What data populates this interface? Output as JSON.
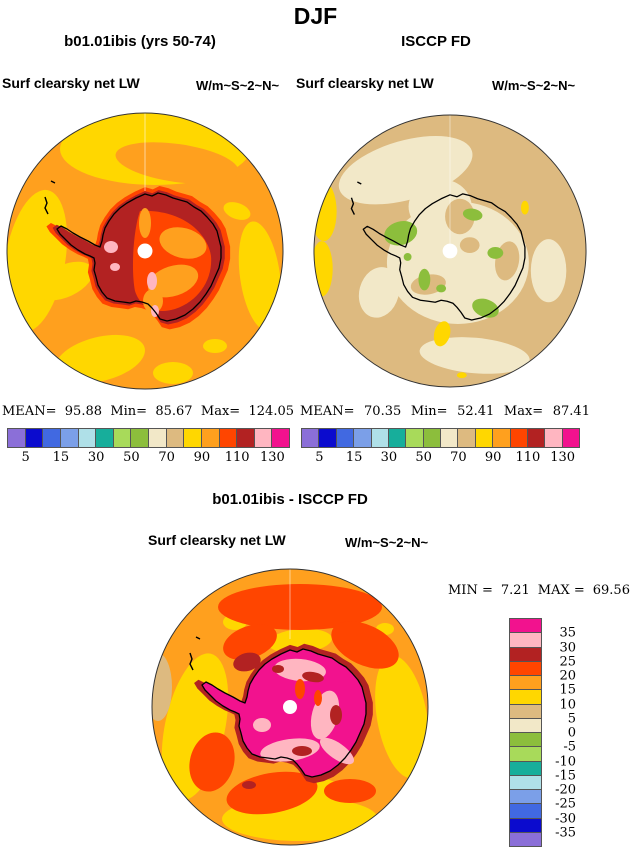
{
  "title": "DJF",
  "palette": {
    "purple": "#8b6fd8",
    "blue_dark": "#0b0bce",
    "blue_royal": "#4169e1",
    "blue_light": "#7b9fe8",
    "cyan_pale": "#afe0e8",
    "teal": "#17ae9b",
    "green_light": "#a8da5a",
    "green": "#8cbe3c",
    "cream": "#f2e8c8",
    "tan": "#ddba80",
    "gold": "#ffd700",
    "orange": "#ffa01e",
    "orange_red": "#ff4500",
    "dark_red": "#b22222",
    "pink": "#ffb6c1",
    "magenta": "#f2128e",
    "coast": "#000000",
    "circle_edge": "#333333",
    "pole": "#ffffff",
    "meridian": "#ffffff"
  },
  "panels": {
    "model": {
      "subtitle": "b01.01ibis (yrs 50-74)",
      "field": "Surf clearsky net LW",
      "units": "W/m~S~2~N~",
      "stats": [
        {
          "label": "MEAN=",
          "value": "95.88"
        },
        {
          "label": "Min=",
          "value": "85.67"
        },
        {
          "label": "Max=",
          "value": "124.05"
        }
      ]
    },
    "obs": {
      "subtitle": "ISCCP FD",
      "field": "Surf clearsky net LW",
      "units": "W/m~S~2~N~",
      "stats": [
        {
          "label": "MEAN=",
          "value": "70.35"
        },
        {
          "label": "Min=",
          "value": "52.41"
        },
        {
          "label": "Max=",
          "value": "87.41"
        }
      ]
    },
    "diff": {
      "subtitle": "b01.01ibis - ISCCP FD",
      "field": "Surf clearsky net LW",
      "units": "W/m~S~2~N~",
      "stats": [
        {
          "label": "MIN =",
          "value": "7.21"
        },
        {
          "label": "MAX =",
          "value": "69.56"
        }
      ]
    }
  },
  "colorbars": {
    "absolute": {
      "orientation": "horizontal",
      "colors": [
        "#8b6fd8",
        "#0b0bce",
        "#4169e1",
        "#7b9fe8",
        "#afe0e8",
        "#17ae9b",
        "#a8da5a",
        "#8cbe3c",
        "#f2e8c8",
        "#ddba80",
        "#ffd700",
        "#ffa01e",
        "#ff4500",
        "#b22222",
        "#ffb6c1",
        "#f2128e"
      ],
      "tick_labels": [
        "5",
        "15",
        "30",
        "50",
        "70",
        "90",
        "110",
        "130"
      ]
    },
    "difference": {
      "orientation": "vertical",
      "colors_top_to_bottom": [
        "#f2128e",
        "#ffb6c1",
        "#b22222",
        "#ff4500",
        "#ffa01e",
        "#ffd700",
        "#ddba80",
        "#f2e8c8",
        "#8cbe3c",
        "#a8da5a",
        "#17ae9b",
        "#afe0e8",
        "#7b9fe8",
        "#4169e1",
        "#0b0bce",
        "#8b6fd8"
      ],
      "tick_labels_top_to_bottom": [
        "35",
        "30",
        "25",
        "20",
        "15",
        "10",
        "5",
        "0",
        "-5",
        "-10",
        "-15",
        "-20",
        "-25",
        "-30",
        "-35"
      ]
    }
  },
  "chart_data": [
    {
      "type": "heatmap",
      "map_type": "south_polar_stereographic_filled_contour",
      "title": "b01.01ibis (yrs 50-74)",
      "season": "DJF",
      "variable": "Surf clearsky net LW",
      "units_label": "W/m~S~2~N~",
      "stats": {
        "mean": 95.88,
        "min": 85.67,
        "max": 124.05
      },
      "contour_levels": [
        5,
        10,
        15,
        20,
        30,
        40,
        50,
        60,
        70,
        80,
        90,
        100,
        110,
        120,
        130
      ],
      "labeled_ticks": [
        5,
        15,
        30,
        50,
        70,
        90,
        110,
        130
      ],
      "colors_low_to_high": [
        "#8b6fd8",
        "#0b0bce",
        "#4169e1",
        "#7b9fe8",
        "#afe0e8",
        "#17ae9b",
        "#a8da5a",
        "#8cbe3c",
        "#f2e8c8",
        "#ddba80",
        "#ffd700",
        "#ffa01e",
        "#ff4500",
        "#b22222",
        "#ffb6c1",
        "#f2128e"
      ],
      "legend_position": "below"
    },
    {
      "type": "heatmap",
      "map_type": "south_polar_stereographic_filled_contour",
      "title": "ISCCP FD",
      "season": "DJF",
      "variable": "Surf clearsky net LW",
      "units_label": "W/m~S~2~N~",
      "stats": {
        "mean": 70.35,
        "min": 52.41,
        "max": 87.41
      },
      "contour_levels": [
        5,
        10,
        15,
        20,
        30,
        40,
        50,
        60,
        70,
        80,
        90,
        100,
        110,
        120,
        130
      ],
      "labeled_ticks": [
        5,
        15,
        30,
        50,
        70,
        90,
        110,
        130
      ],
      "colors_low_to_high": [
        "#8b6fd8",
        "#0b0bce",
        "#4169e1",
        "#7b9fe8",
        "#afe0e8",
        "#17ae9b",
        "#a8da5a",
        "#8cbe3c",
        "#f2e8c8",
        "#ddba80",
        "#ffd700",
        "#ffa01e",
        "#ff4500",
        "#b22222",
        "#ffb6c1",
        "#f2128e"
      ],
      "legend_position": "below"
    },
    {
      "type": "heatmap",
      "map_type": "south_polar_stereographic_filled_contour",
      "title": "b01.01ibis - ISCCP FD",
      "season": "DJF",
      "variable": "Surf clearsky net LW",
      "units_label": "W/m~S~2~N~",
      "stats": {
        "min": 7.21,
        "max": 69.56
      },
      "contour_levels": [
        -35,
        -30,
        -25,
        -20,
        -15,
        -10,
        -5,
        0,
        5,
        10,
        15,
        20,
        25,
        30,
        35
      ],
      "labeled_ticks": [
        35,
        30,
        25,
        20,
        15,
        10,
        5,
        0,
        -5,
        -10,
        -15,
        -20,
        -25,
        -30,
        -35
      ],
      "colors_low_to_high": [
        "#8b6fd8",
        "#0b0bce",
        "#4169e1",
        "#7b9fe8",
        "#afe0e8",
        "#17ae9b",
        "#a8da5a",
        "#8cbe3c",
        "#f2e8c8",
        "#ddba80",
        "#ffd700",
        "#ffa01e",
        "#ff4500",
        "#b22222",
        "#ffb6c1",
        "#f2128e"
      ],
      "legend_position": "right"
    }
  ]
}
